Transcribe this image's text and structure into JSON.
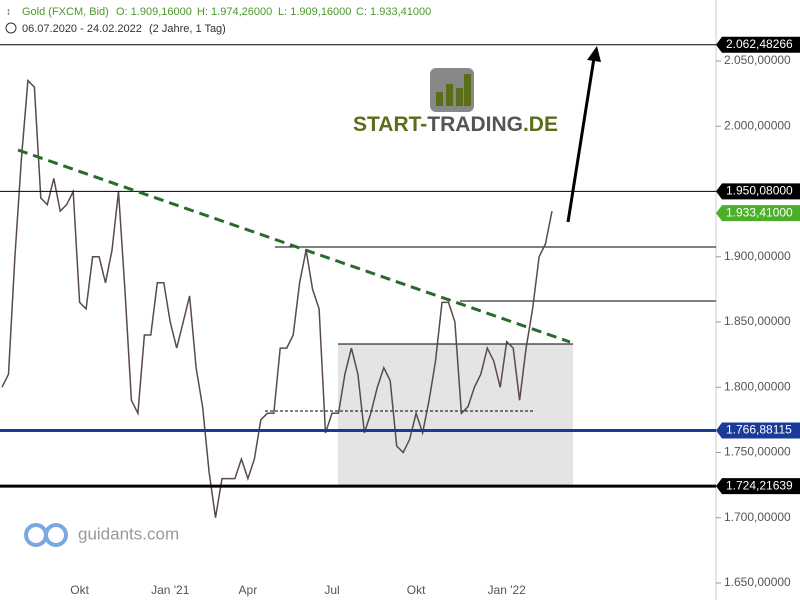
{
  "header": {
    "instrument": "Gold (FXCM, Bid)",
    "open": "O: 1.909,16000",
    "high": "H: 1.974,26000",
    "low": "L: 1.909,16000",
    "close": "C: 1.933,41000",
    "range": "06.07.2020 - 24.02.2022",
    "period": "(2 Jahre, 1 Tag)"
  },
  "logo": {
    "parts": [
      "START-",
      "TRADING",
      ".DE"
    ]
  },
  "watermark": "guidants.com",
  "chart_data": {
    "type": "line",
    "color": "#5a4a4a",
    "categories": [
      null,
      null,
      null,
      null,
      null,
      null,
      null,
      null,
      null,
      null,
      null,
      null,
      "Okt",
      null,
      null,
      null,
      null,
      null,
      null,
      null,
      null,
      null,
      null,
      null,
      null,
      null,
      "Jan '21",
      null,
      null,
      null,
      null,
      null,
      null,
      null,
      null,
      null,
      null,
      null,
      "Apr",
      null,
      null,
      null,
      null,
      null,
      null,
      null,
      null,
      null,
      null,
      null,
      null,
      "Jul",
      null,
      null,
      null,
      null,
      null,
      null,
      null,
      null,
      null,
      null,
      null,
      null,
      "Okt",
      null,
      null,
      null,
      null,
      null,
      null,
      null,
      null,
      null,
      null,
      null,
      null,
      null,
      "Jan '22",
      null,
      null,
      null,
      null,
      null,
      null,
      null
    ],
    "values": [
      1800,
      1810,
      1900,
      1975,
      2035,
      2030,
      1945,
      1940,
      1960,
      1935,
      1940,
      1950,
      1865,
      1860,
      1900,
      1900,
      1880,
      1905,
      1950,
      1875,
      1790,
      1780,
      1840,
      1840,
      1880,
      1880,
      1850,
      1830,
      1850,
      1870,
      1815,
      1785,
      1735,
      1700,
      1730,
      1730,
      1730,
      1745,
      1730,
      1745,
      1775,
      1780,
      1780,
      1830,
      1830,
      1840,
      1880,
      1905,
      1875,
      1860,
      1765,
      1780,
      1780,
      1810,
      1830,
      1810,
      1765,
      1780,
      1800,
      1815,
      1805,
      1755,
      1750,
      1760,
      1780,
      1765,
      1790,
      1820,
      1865,
      1865,
      1850,
      1780,
      1785,
      1800,
      1810,
      1830,
      1820,
      1800,
      1835,
      1830,
      1790,
      1830,
      1860,
      1900,
      1910,
      1935
    ],
    "ylim": [
      1630,
      2090
    ],
    "yticks": [
      {
        "value": 1650,
        "label": "1.650,00000"
      },
      {
        "value": 1700,
        "label": "1.700,00000"
      },
      {
        "value": 1750,
        "label": "1.750,00000"
      },
      {
        "value": 1800,
        "label": "1.800,00000"
      },
      {
        "value": 1850,
        "label": "1.850,00000"
      },
      {
        "value": 1900,
        "label": "1.900,00000"
      },
      {
        "value": 1950,
        "label": "1.950,00000"
      },
      {
        "value": 2000,
        "label": "2.000,00000"
      },
      {
        "value": 2050,
        "label": "2.050,00000"
      }
    ],
    "levels": [
      {
        "value": 2062.48266,
        "label": "2.062,48266",
        "color": "#000000",
        "width": 1,
        "line": true
      },
      {
        "value": 1950.08,
        "label": "1.950,08000",
        "color": "#000000",
        "width": 1,
        "line": true
      },
      {
        "value": 1933.41,
        "label": "1.933,41000",
        "color": "#4caf2a",
        "width": 1,
        "line": false
      },
      {
        "value": 1766.88115,
        "label": "1.766,88115",
        "color": "#1a3a9a",
        "width": 3,
        "line": true
      },
      {
        "value": 1724.21639,
        "label": "1.724,21639",
        "color": "#000000",
        "width": 3,
        "line": true
      }
    ]
  }
}
